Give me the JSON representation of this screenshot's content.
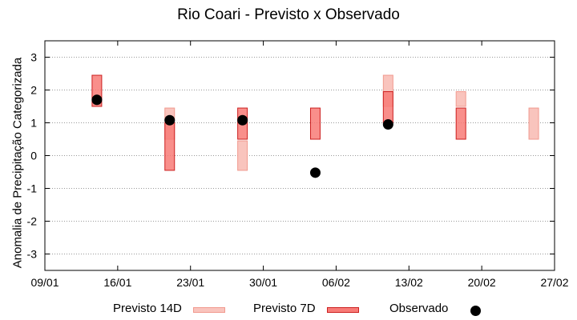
{
  "chart_data": {
    "type": "floating-bar-scatter",
    "title": "Rio Coari - Previsto x Observado",
    "xlabel": "",
    "ylabel": "Anomalia de Precipitação Categorizada",
    "xlim": [
      "2024-01-09",
      "2024-02-27"
    ],
    "x_ticks": [
      "09/01",
      "16/01",
      "23/01",
      "30/01",
      "06/02",
      "13/02",
      "20/02",
      "27/02"
    ],
    "ylim": [
      -3.5,
      3.5
    ],
    "y_ticks": [
      -3,
      -2,
      -1,
      0,
      1,
      2,
      3
    ],
    "grid": "horizontal-dotted",
    "legend_position": "bottom",
    "colors": {
      "previsto14d_fill": "#f9c4bd",
      "previsto14d_edge": "#f19a8f",
      "previsto7d_fill": "#f87b77",
      "previsto7d_edge": "#cc1f1f",
      "observado": "#000000",
      "grid": "#999999"
    },
    "series": [
      {
        "name": "Previsto 14D",
        "ranges": [
          {
            "x": "2024-01-21",
            "low": 0.5,
            "high": 1.45
          },
          {
            "x": "2024-01-28",
            "low": -0.45,
            "high": 0.45
          },
          {
            "x": "2024-02-11",
            "low": 1.5,
            "high": 2.45
          },
          {
            "x": "2024-02-18",
            "low": 1.5,
            "high": 1.95
          },
          {
            "x": "2024-02-25",
            "low": 0.5,
            "high": 1.45
          }
        ]
      },
      {
        "name": "Previsto 7D",
        "ranges": [
          {
            "x": "2024-01-14",
            "low": 1.5,
            "high": 2.45
          },
          {
            "x": "2024-01-21",
            "low": -0.45,
            "high": 1.0
          },
          {
            "x": "2024-01-28",
            "low": 0.5,
            "high": 1.45
          },
          {
            "x": "2024-02-04",
            "low": 0.5,
            "high": 1.45
          },
          {
            "x": "2024-02-11",
            "low": 1.0,
            "high": 1.95
          },
          {
            "x": "2024-02-18",
            "low": 0.5,
            "high": 1.45
          }
        ]
      },
      {
        "name": "Observado",
        "points": [
          {
            "x": "2024-01-14",
            "y": 1.7
          },
          {
            "x": "2024-01-21",
            "y": 1.08
          },
          {
            "x": "2024-01-28",
            "y": 1.08
          },
          {
            "x": "2024-02-04",
            "y": -0.52
          },
          {
            "x": "2024-02-11",
            "y": 0.95
          }
        ]
      }
    ]
  },
  "legend": {
    "previsto14d": "Previsto 14D",
    "previsto7d": "Previsto 7D",
    "observado": "Observado"
  }
}
